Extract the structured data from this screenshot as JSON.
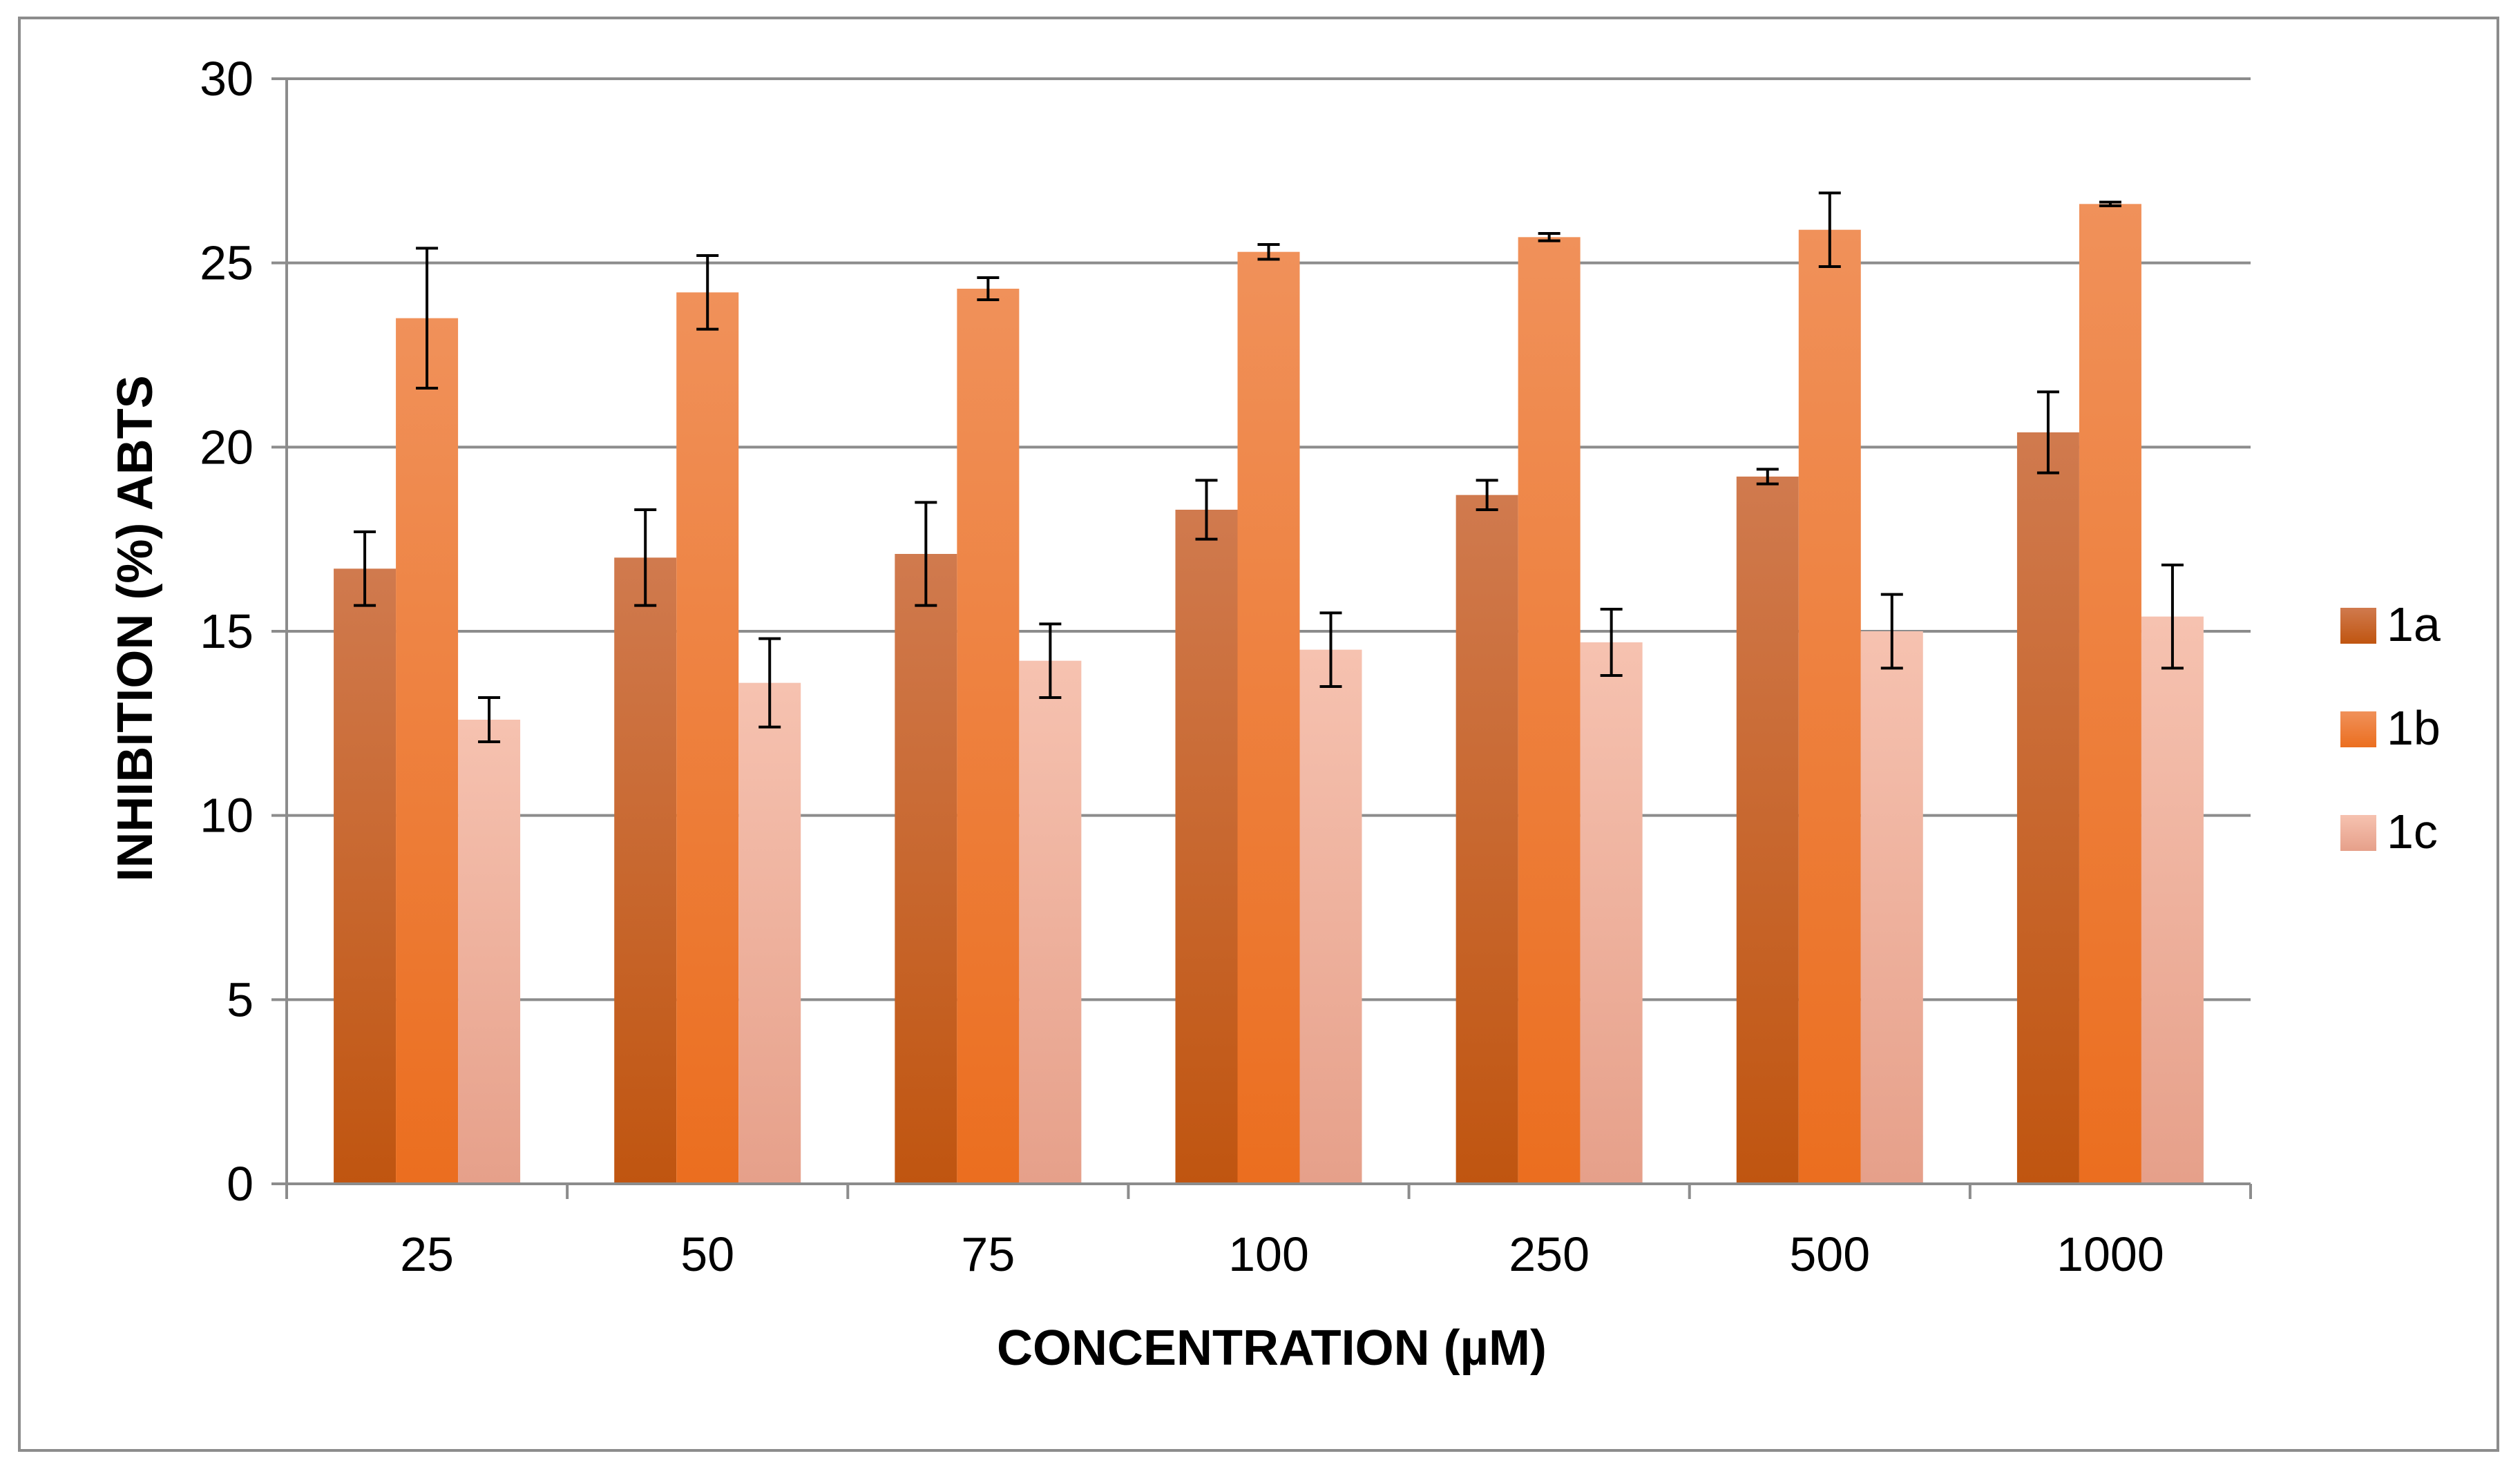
{
  "chart_data": {
    "type": "bar",
    "title": "",
    "xlabel": "CONCENTRATION (µM)",
    "ylabel": "INHIBITION (%) ABTS",
    "ylim": [
      0,
      30
    ],
    "yticks": [
      0,
      5,
      10,
      15,
      20,
      25,
      30
    ],
    "grid": true,
    "legend_position": "right",
    "categories": [
      "25",
      "50",
      "75",
      "100",
      "250",
      "500",
      "1000"
    ],
    "series": [
      {
        "name": "1a",
        "color": "#C55A11",
        "values": [
          16.7,
          17.0,
          17.1,
          18.3,
          18.7,
          19.2,
          20.4
        ],
        "errors": [
          1.0,
          1.3,
          1.4,
          0.8,
          0.4,
          0.2,
          1.1
        ]
      },
      {
        "name": "1b",
        "color": "#ED7D31",
        "values": [
          23.5,
          24.2,
          24.3,
          25.3,
          25.7,
          25.9,
          26.6
        ],
        "errors": [
          1.9,
          1.0,
          0.3,
          0.2,
          0.1,
          1.0,
          0.05
        ]
      },
      {
        "name": "1c",
        "color": "#F4B9A4",
        "values": [
          12.6,
          13.6,
          14.2,
          14.5,
          14.7,
          15.0,
          15.4
        ],
        "errors": [
          0.6,
          1.2,
          1.0,
          1.0,
          0.9,
          1.0,
          1.4
        ]
      }
    ]
  }
}
